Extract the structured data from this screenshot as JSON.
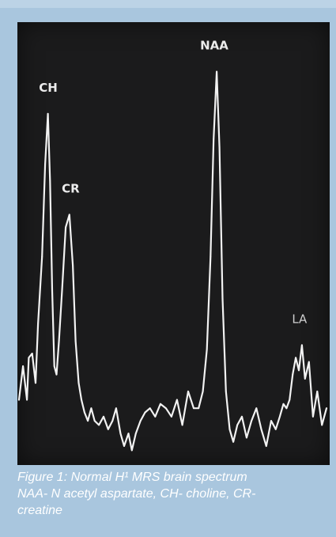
{
  "chart_data": {
    "type": "line",
    "title": "",
    "xlabel": "",
    "ylabel": "",
    "xlim": [
      0,
      100
    ],
    "ylim": [
      0,
      100
    ],
    "grid": false,
    "line_color": "#f2f2f2",
    "background_color": "#1b1b1c",
    "x": [
      0,
      1.3,
      2.6,
      3.2,
      4.3,
      5.4,
      6.2,
      7.5,
      8.5,
      9.4,
      10.1,
      10.8,
      11.5,
      12.2,
      13,
      14,
      15.2,
      16.4,
      17.5,
      18.4,
      19.4,
      20.3,
      21.3,
      22.4,
      23.5,
      24.6,
      26,
      27.5,
      29,
      30.4,
      31.6,
      33,
      34.2,
      35.6,
      36.7,
      38,
      39.5,
      41,
      42.6,
      44.3,
      46,
      47.8,
      49.6,
      51.4,
      53.1,
      55,
      56.8,
      58.4,
      59.8,
      61.1,
      62.3,
      63.3,
      64.3,
      65.2,
      66.2,
      67.3,
      68.5,
      69.7,
      71,
      72.5,
      74,
      75.6,
      77.2,
      78.8,
      80.4,
      82,
      83.5,
      84.8,
      86,
      87,
      88,
      89,
      90,
      91,
      92,
      93,
      94.3,
      95.6,
      97,
      98.5,
      100
    ],
    "y": [
      14,
      22,
      14,
      24,
      25,
      18,
      32,
      48,
      70,
      82,
      66,
      40,
      22,
      20,
      28,
      40,
      55,
      58,
      46,
      28,
      18,
      14,
      11,
      9,
      12,
      9,
      8,
      10,
      7,
      9,
      12,
      6,
      3,
      6,
      2,
      6,
      9,
      11,
      12,
      10,
      13,
      12,
      10,
      14,
      8,
      16,
      12,
      12,
      16,
      26,
      48,
      76,
      92,
      74,
      38,
      16,
      7,
      4,
      8,
      10,
      5,
      9,
      12,
      7,
      3,
      9,
      7,
      10,
      13,
      12,
      14,
      20,
      24,
      21,
      27,
      19,
      23,
      10,
      16,
      8,
      12
    ],
    "peak_labels": [
      {
        "label": "CH",
        "x": 9.5,
        "y": 82
      },
      {
        "label": "CR",
        "x": 16.8,
        "y": 58
      },
      {
        "label": "NAA",
        "x": 63.5,
        "y": 92
      },
      {
        "label": "LA",
        "x": 91.2,
        "y": 27
      }
    ]
  },
  "caption": {
    "lines": [
      "Figure 1: Normal H¹ MRS brain spectrum",
      "NAA- N acetyl aspartate, CH- choline, CR-",
      "creatine"
    ]
  }
}
